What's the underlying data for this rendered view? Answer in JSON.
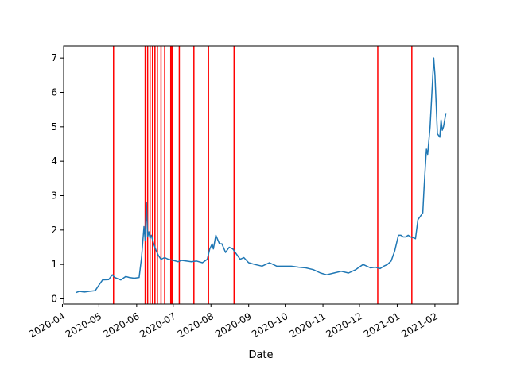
{
  "chart_data": {
    "type": "line",
    "title": "",
    "xlabel": "Date",
    "ylabel": "",
    "xlim": [
      "2020-04-02",
      "2021-02-20"
    ],
    "ylim": [
      -0.15,
      7.35
    ],
    "grid": false,
    "x_ticks": [
      "2020-04",
      "2020-05",
      "2020-06",
      "2020-07",
      "2020-08",
      "2020-09",
      "2020-10",
      "2020-11",
      "2020-12",
      "2021-01",
      "2021-02"
    ],
    "y_ticks": [
      0,
      1,
      2,
      3,
      4,
      5,
      6,
      7
    ],
    "line_color": "#1f77b4",
    "vline_color": "#ff0000",
    "series": [
      {
        "x": [
          "2020-04-12",
          "2020-04-15",
          "2020-04-19",
          "2020-04-23",
          "2020-04-28",
          "2020-05-01",
          "2020-05-04",
          "2020-05-09",
          "2020-05-12",
          "2020-05-14",
          "2020-05-19",
          "2020-05-23",
          "2020-05-26",
          "2020-05-30",
          "2020-06-03",
          "2020-06-05",
          "2020-06-07",
          "2020-06-08",
          "2020-06-09",
          "2020-06-10",
          "2020-06-11",
          "2020-06-12",
          "2020-06-13",
          "2020-06-15",
          "2020-06-17",
          "2020-06-19",
          "2020-06-21",
          "2020-06-24",
          "2020-06-27",
          "2020-07-01",
          "2020-07-05",
          "2020-07-08",
          "2020-07-12",
          "2020-07-16",
          "2020-07-20",
          "2020-07-25",
          "2020-07-29",
          "2020-07-31",
          "2020-08-02",
          "2020-08-03",
          "2020-08-05",
          "2020-08-08",
          "2020-08-10",
          "2020-08-13",
          "2020-08-16",
          "2020-08-19",
          "2020-08-22",
          "2020-08-25",
          "2020-08-28",
          "2020-09-01",
          "2020-09-06",
          "2020-09-12",
          "2020-09-18",
          "2020-09-24",
          "2020-09-30",
          "2020-10-06",
          "2020-10-12",
          "2020-10-18",
          "2020-10-24",
          "2020-10-30",
          "2020-11-04",
          "2020-11-10",
          "2020-11-16",
          "2020-11-22",
          "2020-11-28",
          "2020-12-04",
          "2020-12-10",
          "2020-12-14",
          "2020-12-18",
          "2020-12-21",
          "2020-12-24",
          "2020-12-27",
          "2020-12-30",
          "2021-01-02",
          "2021-01-04",
          "2021-01-06",
          "2021-01-08",
          "2021-01-10",
          "2021-01-12",
          "2021-01-14",
          "2021-01-16",
          "2021-01-18",
          "2021-01-20",
          "2021-01-22",
          "2021-01-23",
          "2021-01-24",
          "2021-01-25",
          "2021-01-26",
          "2021-01-28",
          "2021-01-31",
          "2021-02-01",
          "2021-02-03",
          "2021-02-05",
          "2021-02-06",
          "2021-02-07",
          "2021-02-08",
          "2021-02-10"
        ],
        "y": [
          0.18,
          0.22,
          0.2,
          0.22,
          0.24,
          0.4,
          0.55,
          0.56,
          0.7,
          0.62,
          0.55,
          0.65,
          0.62,
          0.6,
          0.62,
          1.2,
          2.1,
          1.7,
          2.8,
          1.8,
          1.95,
          1.75,
          1.85,
          1.6,
          1.4,
          1.25,
          1.15,
          1.2,
          1.15,
          1.12,
          1.08,
          1.12,
          1.1,
          1.08,
          1.1,
          1.05,
          1.15,
          1.45,
          1.6,
          1.45,
          1.85,
          1.6,
          1.6,
          1.35,
          1.5,
          1.45,
          1.3,
          1.15,
          1.2,
          1.05,
          1.0,
          0.95,
          1.05,
          0.95,
          0.95,
          0.95,
          0.92,
          0.9,
          0.85,
          0.75,
          0.7,
          0.75,
          0.8,
          0.75,
          0.85,
          1.0,
          0.9,
          0.92,
          0.88,
          0.95,
          1.0,
          1.1,
          1.4,
          1.85,
          1.85,
          1.8,
          1.8,
          1.85,
          1.8,
          1.78,
          1.75,
          2.3,
          2.4,
          2.5,
          3.2,
          3.8,
          4.35,
          4.2,
          5.0,
          7.0,
          6.5,
          4.8,
          4.7,
          5.2,
          4.9,
          5.0,
          5.4
        ]
      }
    ],
    "vlines": [
      "2020-05-13",
      "2020-06-08",
      "2020-06-10",
      "2020-06-12",
      "2020-06-14",
      "2020-06-16",
      "2020-06-18",
      "2020-06-21",
      "2020-06-24",
      "2020-06-29",
      "2020-06-30",
      "2020-07-06",
      "2020-07-18",
      "2020-07-30",
      "2020-08-20",
      "2020-12-16",
      "2021-01-13"
    ]
  }
}
